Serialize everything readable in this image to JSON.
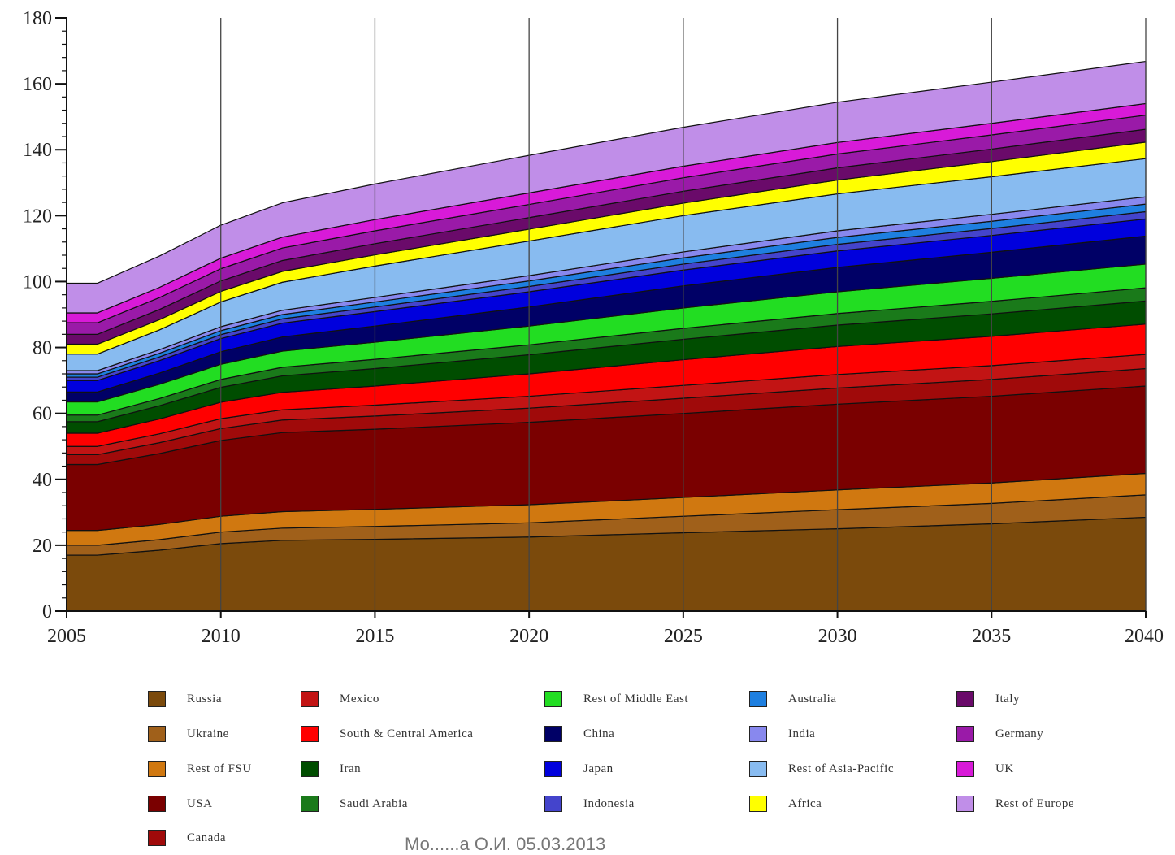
{
  "footer_text": "Мо......а О.И. 05.03.2013",
  "chart_data": {
    "type": "area",
    "stacked": true,
    "title": "",
    "xlabel": "",
    "ylabel": "",
    "xlim": [
      2005,
      2040
    ],
    "ylim": [
      0,
      180
    ],
    "x_ticks": [
      "2005",
      "2010",
      "2015",
      "2020",
      "2025",
      "2030",
      "2035",
      "2040"
    ],
    "y_ticks": [
      "0",
      "20",
      "40",
      "60",
      "80",
      "100",
      "120",
      "140",
      "160",
      "180"
    ],
    "grid": "vertical",
    "legend_position": "bottom",
    "x": [
      2005,
      2006,
      2008,
      2010,
      2012,
      2015,
      2020,
      2025,
      2030,
      2035,
      2040
    ],
    "series": [
      {
        "name": "Russia",
        "color": "#7b4a0c",
        "values": [
          17,
          17,
          18.5,
          20.5,
          21.5,
          21.8,
          22.5,
          23.8,
          25,
          26.5,
          28.5
        ]
      },
      {
        "name": "Ukraine",
        "color": "#a0601a",
        "values": [
          3,
          3,
          3.2,
          3.5,
          3.7,
          3.9,
          4.3,
          5,
          5.8,
          6.2,
          6.8
        ]
      },
      {
        "name": "Rest of FSU",
        "color": "#d07810",
        "values": [
          4.5,
          4.5,
          4.6,
          4.8,
          5,
          5.2,
          5.5,
          5.7,
          6,
          6.2,
          6.5
        ]
      },
      {
        "name": "USA",
        "color": "#7a0000",
        "values": [
          20,
          20,
          21.5,
          23,
          24,
          24.3,
          25,
          25.5,
          26,
          26.3,
          26.5
        ]
      },
      {
        "name": "Canada",
        "color": "#a00a0a",
        "values": [
          3,
          3,
          3.3,
          3.6,
          3.8,
          4,
          4.3,
          4.6,
          4.9,
          5.1,
          5.3
        ]
      },
      {
        "name": "Mexico",
        "color": "#c21414",
        "values": [
          2.5,
          2.5,
          2.7,
          3,
          3.1,
          3.3,
          3.6,
          3.9,
          4.1,
          4.2,
          4.3
        ]
      },
      {
        "name": "South & Central America",
        "color": "#ff0000",
        "values": [
          4,
          4,
          4.5,
          5,
          5.3,
          5.8,
          6.8,
          7.8,
          8.5,
          8.9,
          9.2
        ]
      },
      {
        "name": "Iran",
        "color": "#004d00",
        "values": [
          3.5,
          3.5,
          4,
          4.5,
          5,
          5.3,
          5.8,
          6.2,
          6.5,
          6.8,
          7
        ]
      },
      {
        "name": "Saudi Arabia",
        "color": "#1a7a1a",
        "values": [
          2,
          2,
          2.2,
          2.4,
          2.6,
          2.8,
          3,
          3.3,
          3.5,
          3.8,
          4
        ]
      },
      {
        "name": "Rest of Middle East",
        "color": "#22dd22",
        "values": [
          4,
          4,
          4.3,
          4.6,
          4.9,
          5.2,
          5.7,
          6.2,
          6.6,
          7,
          7.2
        ]
      },
      {
        "name": "China",
        "color": "#000066",
        "values": [
          3,
          3,
          3.4,
          3.8,
          4.3,
          4.9,
          5.8,
          6.7,
          7.4,
          7.9,
          8.5
        ]
      },
      {
        "name": "Japan",
        "color": "#0000dd",
        "values": [
          3.5,
          3.5,
          3.8,
          4,
          4.2,
          4.4,
          4.6,
          4.8,
          5,
          5.1,
          5.2
        ]
      },
      {
        "name": "Indonesia",
        "color": "#4444cc",
        "values": [
          1,
          1,
          1.1,
          1.2,
          1.3,
          1.4,
          1.6,
          1.8,
          2,
          2.1,
          2.2
        ]
      },
      {
        "name": "Australia",
        "color": "#1e7fe0",
        "values": [
          1,
          1,
          1.1,
          1.2,
          1.3,
          1.5,
          1.7,
          1.9,
          2.1,
          2.2,
          2.3
        ]
      },
      {
        "name": "India",
        "color": "#8888ee",
        "values": [
          1,
          1,
          1.1,
          1.2,
          1.3,
          1.4,
          1.6,
          1.8,
          2,
          2.1,
          2.2
        ]
      },
      {
        "name": "Rest of Asia-Pacific",
        "color": "#88bbf0",
        "values": [
          5,
          5,
          6,
          7.5,
          8.5,
          9.5,
          10.5,
          11,
          11.2,
          11.4,
          11.6
        ]
      },
      {
        "name": "Africa",
        "color": "#ffff00",
        "values": [
          3,
          3,
          3.1,
          3.2,
          3.3,
          3.4,
          3.6,
          3.8,
          4.2,
          4.6,
          5
        ]
      },
      {
        "name": "Italy",
        "color": "#6a0a6a",
        "values": [
          3,
          3,
          3.1,
          3.2,
          3.3,
          3.4,
          3.5,
          3.6,
          3.7,
          3.8,
          3.9
        ]
      },
      {
        "name": "Germany",
        "color": "#9a1aa8",
        "values": [
          3.5,
          3.5,
          3.6,
          3.7,
          3.8,
          3.9,
          4,
          4.1,
          4.2,
          4.3,
          4.3
        ]
      },
      {
        "name": "UK",
        "color": "#d81ad8",
        "values": [
          3,
          3,
          3.1,
          3.2,
          3.3,
          3.4,
          3.5,
          3.5,
          3.5,
          3.5,
          3.5
        ]
      },
      {
        "name": "Rest of Europe",
        "color": "#c08ee8",
        "values": [
          9,
          9,
          9.5,
          10,
          10.4,
          10.8,
          11.4,
          11.8,
          12.2,
          12.5,
          12.8
        ]
      }
    ]
  }
}
